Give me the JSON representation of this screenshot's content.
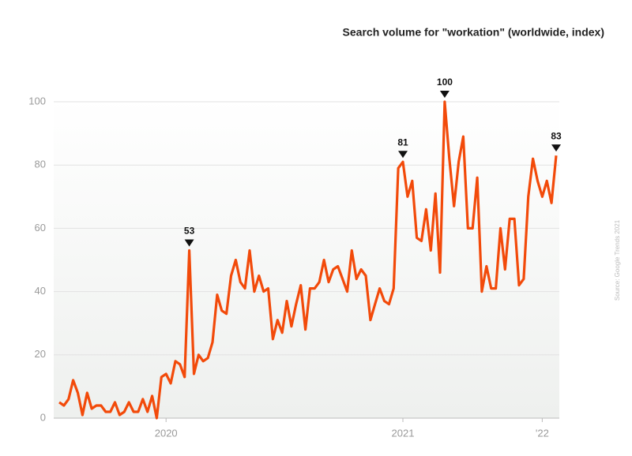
{
  "chart_data": {
    "type": "line",
    "title": "Search volume for \"workation\" (worldwide, index)",
    "source": "Source: Google Trends 2021",
    "categories": [
      null,
      null,
      null,
      null,
      null,
      null,
      null,
      null,
      null,
      null,
      null,
      null,
      null,
      null,
      null,
      null,
      null,
      null,
      null,
      null,
      null,
      null,
      null,
      "2020",
      null,
      null,
      null,
      null,
      null,
      null,
      null,
      null,
      null,
      null,
      null,
      null,
      null,
      null,
      null,
      null,
      null,
      null,
      null,
      null,
      null,
      null,
      null,
      null,
      null,
      null,
      null,
      null,
      null,
      null,
      null,
      null,
      null,
      null,
      null,
      null,
      null,
      null,
      null,
      null,
      null,
      null,
      null,
      null,
      null,
      null,
      null,
      null,
      null,
      null,
      "2021",
      null,
      null,
      null,
      null,
      null,
      null,
      null,
      null,
      null,
      null,
      null,
      null,
      null,
      null,
      null,
      null,
      null,
      null,
      null,
      null,
      null,
      null,
      null,
      null,
      null,
      null,
      null,
      null,
      null,
      "'22",
      null,
      null,
      null
    ],
    "series": [
      {
        "name": "workation",
        "color": "#f24a0a",
        "values": [
          5,
          4,
          6,
          12,
          8,
          1,
          8,
          3,
          4,
          4,
          2,
          2,
          5,
          1,
          2,
          5,
          2,
          2,
          6,
          2,
          7,
          0,
          13,
          14,
          11,
          18,
          17,
          13,
          53,
          14,
          20,
          18,
          19,
          24,
          39,
          34,
          33,
          45,
          50,
          43,
          41,
          53,
          40,
          45,
          40,
          41,
          25,
          31,
          27,
          37,
          29,
          36,
          42,
          28,
          41,
          41,
          43,
          50,
          43,
          47,
          48,
          44,
          40,
          53,
          44,
          47,
          45,
          31,
          36,
          41,
          37,
          36,
          41,
          79,
          81,
          70,
          75,
          57,
          56,
          66,
          53,
          71,
          46,
          100,
          82,
          67,
          81,
          89,
          60,
          60,
          76,
          40,
          48,
          41,
          41,
          60,
          47,
          63,
          63,
          42,
          44,
          70,
          82,
          75,
          70,
          75,
          68,
          83
        ],
        "value_labels": [
          null,
          null,
          null,
          null,
          null,
          null,
          null,
          null,
          null,
          null,
          null,
          null,
          null,
          null,
          null,
          null,
          null,
          null,
          null,
          null,
          null,
          null,
          null,
          null,
          null,
          null,
          null,
          null,
          "53",
          null,
          null,
          null,
          null,
          null,
          null,
          null,
          null,
          null,
          null,
          null,
          null,
          null,
          null,
          null,
          null,
          null,
          null,
          null,
          null,
          null,
          null,
          null,
          null,
          null,
          null,
          null,
          null,
          null,
          null,
          null,
          null,
          null,
          null,
          null,
          null,
          null,
          null,
          null,
          null,
          null,
          null,
          null,
          null,
          null,
          "81",
          null,
          null,
          null,
          null,
          null,
          null,
          null,
          null,
          "100",
          null,
          null,
          null,
          null,
          null,
          null,
          null,
          null,
          null,
          null,
          null,
          null,
          null,
          null,
          null,
          null,
          null,
          null,
          null,
          null,
          null,
          null,
          null,
          "83"
        ]
      }
    ],
    "ylim": [
      0,
      100
    ],
    "yticks": [
      0,
      20,
      40,
      60,
      80,
      100
    ],
    "grid": true
  }
}
